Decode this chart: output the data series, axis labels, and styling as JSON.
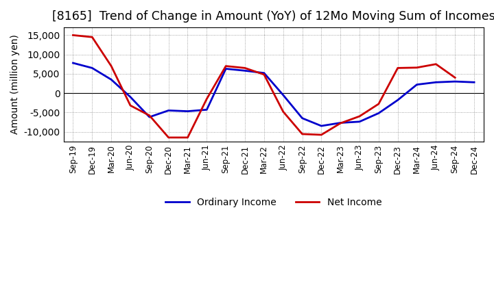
{
  "title": "[8165]  Trend of Change in Amount (YoY) of 12Mo Moving Sum of Incomes",
  "ylabel": "Amount (million yen)",
  "x_labels": [
    "Sep-19",
    "Dec-19",
    "Mar-20",
    "Jun-20",
    "Sep-20",
    "Dec-20",
    "Mar-21",
    "Jun-21",
    "Sep-21",
    "Dec-21",
    "Mar-22",
    "Jun-22",
    "Sep-22",
    "Dec-22",
    "Mar-23",
    "Jun-23",
    "Sep-23",
    "Dec-23",
    "Mar-24",
    "Jun-24",
    "Sep-24",
    "Dec-24"
  ],
  "ordinary_income": [
    7800,
    6500,
    3500,
    -1000,
    -6200,
    -4500,
    -4700,
    -4300,
    6300,
    5800,
    5200,
    -500,
    -6500,
    -8500,
    -7700,
    -7400,
    -5200,
    -1800,
    2200,
    2800,
    3000,
    2800
  ],
  "net_income": [
    15000,
    14500,
    7000,
    -3200,
    -5800,
    -11500,
    -11500,
    -1500,
    7000,
    6500,
    4800,
    -4800,
    -10600,
    -10800,
    -7800,
    -6000,
    -2800,
    6500,
    6600,
    7500,
    4000,
    null
  ],
  "ordinary_color": "#0000cc",
  "net_color": "#cc0000",
  "ylim": [
    -12500,
    17000
  ],
  "yticks": [
    -10000,
    -5000,
    0,
    5000,
    10000,
    15000
  ],
  "background_color": "#ffffff",
  "grid_color": "#888888",
  "title_fontsize": 12.5,
  "axis_fontsize": 10,
  "tick_fontsize": 8.5,
  "legend_fontsize": 10,
  "line_width": 2.0
}
